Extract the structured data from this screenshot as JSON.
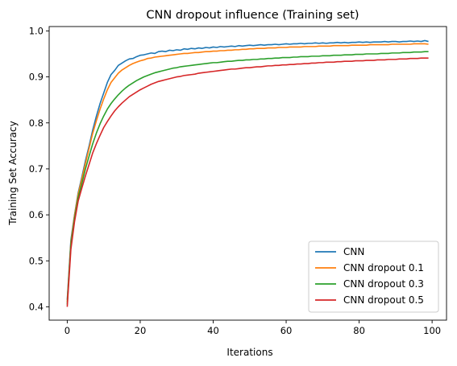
{
  "chart_data": {
    "type": "line",
    "title": "CNN dropout influence (Training set)",
    "xlabel": "Iterations",
    "ylabel": "Training Set Accuracy",
    "xlim": [
      -4.95,
      103.95
    ],
    "ylim": [
      0.371,
      1.0095
    ],
    "xticks": [
      0,
      20,
      40,
      60,
      80,
      100
    ],
    "yticks": [
      0.4,
      0.5,
      0.6,
      0.7,
      0.8,
      0.9,
      1.0
    ],
    "xtick_labels": [
      "0",
      "20",
      "40",
      "60",
      "80",
      "100"
    ],
    "ytick_labels": [
      "0.4",
      "0.5",
      "0.6",
      "0.7",
      "0.8",
      "0.9",
      "1.0"
    ],
    "grid": false,
    "legend_position": "lower-right",
    "x": [
      0,
      1,
      2,
      3,
      4,
      5,
      6,
      7,
      8,
      9,
      10,
      11,
      12,
      13,
      14,
      15,
      16,
      17,
      18,
      19,
      20,
      21,
      22,
      23,
      24,
      25,
      26,
      27,
      28,
      29,
      30,
      31,
      32,
      33,
      34,
      35,
      36,
      37,
      38,
      39,
      40,
      41,
      42,
      43,
      44,
      45,
      46,
      47,
      48,
      49,
      50,
      51,
      52,
      53,
      54,
      55,
      56,
      57,
      58,
      59,
      60,
      61,
      62,
      63,
      64,
      65,
      66,
      67,
      68,
      69,
      70,
      71,
      72,
      73,
      74,
      75,
      76,
      77,
      78,
      79,
      80,
      81,
      82,
      83,
      84,
      85,
      86,
      87,
      88,
      89,
      90,
      91,
      92,
      93,
      94,
      95,
      96,
      97,
      98,
      99
    ],
    "series": [
      {
        "name": "CNN",
        "color": "#1f77b4",
        "values": [
          0.415,
          0.545,
          0.6,
          0.648,
          0.682,
          0.718,
          0.75,
          0.785,
          0.815,
          0.842,
          0.865,
          0.888,
          0.905,
          0.914,
          0.925,
          0.93,
          0.935,
          0.939,
          0.94,
          0.944,
          0.947,
          0.948,
          0.95,
          0.952,
          0.951,
          0.955,
          0.956,
          0.955,
          0.958,
          0.957,
          0.959,
          0.958,
          0.961,
          0.96,
          0.962,
          0.961,
          0.963,
          0.962,
          0.964,
          0.963,
          0.965,
          0.964,
          0.966,
          0.965,
          0.966,
          0.967,
          0.966,
          0.968,
          0.967,
          0.968,
          0.969,
          0.968,
          0.969,
          0.97,
          0.969,
          0.97,
          0.97,
          0.971,
          0.97,
          0.971,
          0.972,
          0.971,
          0.972,
          0.972,
          0.973,
          0.972,
          0.973,
          0.973,
          0.974,
          0.973,
          0.974,
          0.973,
          0.974,
          0.974,
          0.975,
          0.974,
          0.975,
          0.974,
          0.975,
          0.975,
          0.976,
          0.975,
          0.976,
          0.975,
          0.976,
          0.976,
          0.976,
          0.977,
          0.976,
          0.977,
          0.977,
          0.976,
          0.977,
          0.977,
          0.978,
          0.977,
          0.978,
          0.977,
          0.979,
          0.977
        ]
      },
      {
        "name": "CNN dropout 0.1",
        "color": "#ff7f0e",
        "values": [
          0.41,
          0.54,
          0.598,
          0.645,
          0.678,
          0.712,
          0.745,
          0.778,
          0.805,
          0.83,
          0.852,
          0.872,
          0.888,
          0.898,
          0.908,
          0.915,
          0.92,
          0.925,
          0.929,
          0.932,
          0.935,
          0.937,
          0.94,
          0.941,
          0.943,
          0.944,
          0.945,
          0.946,
          0.947,
          0.948,
          0.949,
          0.95,
          0.951,
          0.951,
          0.952,
          0.953,
          0.953,
          0.954,
          0.955,
          0.955,
          0.956,
          0.956,
          0.957,
          0.957,
          0.958,
          0.958,
          0.959,
          0.959,
          0.96,
          0.96,
          0.961,
          0.961,
          0.962,
          0.962,
          0.962,
          0.963,
          0.963,
          0.963,
          0.964,
          0.964,
          0.964,
          0.965,
          0.965,
          0.965,
          0.965,
          0.966,
          0.966,
          0.966,
          0.966,
          0.967,
          0.967,
          0.967,
          0.967,
          0.968,
          0.968,
          0.968,
          0.968,
          0.968,
          0.969,
          0.969,
          0.969,
          0.969,
          0.969,
          0.97,
          0.97,
          0.97,
          0.97,
          0.97,
          0.97,
          0.971,
          0.971,
          0.971,
          0.971,
          0.971,
          0.971,
          0.972,
          0.972,
          0.972,
          0.972,
          0.971
        ]
      },
      {
        "name": "CNN dropout 0.3",
        "color": "#2ca02c",
        "values": [
          0.405,
          0.535,
          0.592,
          0.638,
          0.668,
          0.7,
          0.728,
          0.755,
          0.778,
          0.798,
          0.815,
          0.83,
          0.842,
          0.852,
          0.861,
          0.869,
          0.876,
          0.882,
          0.887,
          0.892,
          0.896,
          0.9,
          0.903,
          0.906,
          0.909,
          0.911,
          0.913,
          0.915,
          0.917,
          0.919,
          0.92,
          0.922,
          0.923,
          0.924,
          0.925,
          0.926,
          0.927,
          0.928,
          0.929,
          0.93,
          0.931,
          0.931,
          0.932,
          0.933,
          0.934,
          0.934,
          0.935,
          0.936,
          0.936,
          0.937,
          0.937,
          0.938,
          0.938,
          0.939,
          0.939,
          0.94,
          0.94,
          0.941,
          0.941,
          0.942,
          0.942,
          0.942,
          0.943,
          0.943,
          0.944,
          0.944,
          0.944,
          0.945,
          0.945,
          0.945,
          0.946,
          0.946,
          0.946,
          0.947,
          0.947,
          0.947,
          0.948,
          0.948,
          0.948,
          0.949,
          0.949,
          0.949,
          0.95,
          0.95,
          0.95,
          0.95,
          0.951,
          0.951,
          0.951,
          0.952,
          0.952,
          0.952,
          0.953,
          0.953,
          0.953,
          0.954,
          0.954,
          0.954,
          0.955,
          0.955
        ]
      },
      {
        "name": "CNN dropout 0.5",
        "color": "#d62728",
        "values": [
          0.4,
          0.525,
          0.585,
          0.63,
          0.658,
          0.685,
          0.71,
          0.735,
          0.755,
          0.773,
          0.79,
          0.803,
          0.815,
          0.826,
          0.835,
          0.843,
          0.85,
          0.857,
          0.862,
          0.867,
          0.872,
          0.876,
          0.88,
          0.884,
          0.887,
          0.89,
          0.892,
          0.894,
          0.896,
          0.898,
          0.9,
          0.901,
          0.903,
          0.904,
          0.905,
          0.906,
          0.908,
          0.909,
          0.91,
          0.911,
          0.912,
          0.913,
          0.914,
          0.915,
          0.916,
          0.917,
          0.917,
          0.918,
          0.919,
          0.92,
          0.92,
          0.921,
          0.922,
          0.922,
          0.923,
          0.924,
          0.924,
          0.925,
          0.925,
          0.926,
          0.926,
          0.927,
          0.927,
          0.928,
          0.928,
          0.929,
          0.929,
          0.93,
          0.93,
          0.931,
          0.931,
          0.932,
          0.932,
          0.932,
          0.933,
          0.933,
          0.934,
          0.934,
          0.934,
          0.935,
          0.935,
          0.935,
          0.936,
          0.936,
          0.936,
          0.937,
          0.937,
          0.937,
          0.938,
          0.938,
          0.938,
          0.939,
          0.939,
          0.939,
          0.94,
          0.94,
          0.94,
          0.941,
          0.941,
          0.941
        ]
      }
    ]
  }
}
